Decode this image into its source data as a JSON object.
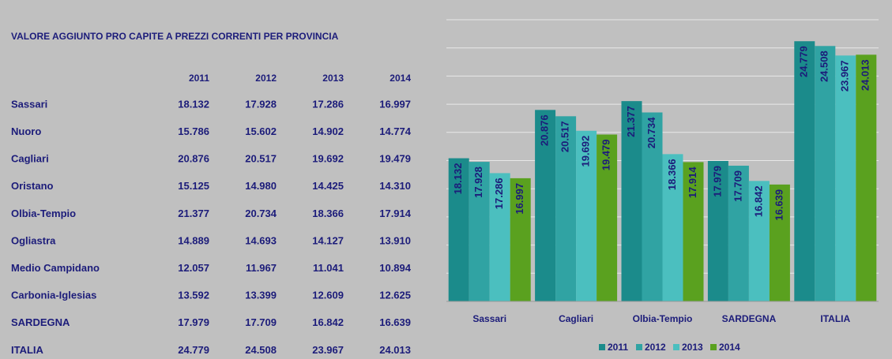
{
  "table": {
    "title": "VALORE AGGIUNTO PRO CAPITE A PREZZI CORRENTI PER PROVINCIA",
    "columns": [
      "2011",
      "2012",
      "2013",
      "2014"
    ],
    "rows": [
      {
        "name": "Sassari",
        "values": [
          "18.132",
          "17.928",
          "17.286",
          "16.997"
        ]
      },
      {
        "name": "Nuoro",
        "values": [
          "15.786",
          "15.602",
          "14.902",
          "14.774"
        ]
      },
      {
        "name": "Cagliari",
        "values": [
          "20.876",
          "20.517",
          "19.692",
          "19.479"
        ]
      },
      {
        "name": "Oristano",
        "values": [
          "15.125",
          "14.980",
          "14.425",
          "14.310"
        ]
      },
      {
        "name": "Olbia-Tempio",
        "values": [
          "21.377",
          "20.734",
          "18.366",
          "17.914"
        ]
      },
      {
        "name": "Ogliastra",
        "values": [
          "14.889",
          "14.693",
          "14.127",
          "13.910"
        ]
      },
      {
        "name": "Medio Campidano",
        "values": [
          "12.057",
          "11.967",
          "11.041",
          "10.894"
        ]
      },
      {
        "name": "Carbonia-Iglesias",
        "values": [
          "13.592",
          "13.399",
          "12.609",
          "12.625"
        ]
      },
      {
        "name": "SARDEGNA",
        "values": [
          "17.979",
          "17.709",
          "16.842",
          "16.639"
        ]
      },
      {
        "name": "ITALIA",
        "values": [
          "24.779",
          "24.508",
          "23.967",
          "24.013"
        ]
      }
    ]
  },
  "chart_data": {
    "type": "bar",
    "categories": [
      "Sassari",
      "Cagliari",
      "Olbia-Tempio",
      "SARDEGNA",
      "ITALIA"
    ],
    "series": [
      {
        "name": "2011",
        "color": "#1b8b8b",
        "values": [
          18132,
          20876,
          21377,
          17979,
          24779
        ],
        "value_labels": [
          "18.132",
          "20.876",
          "21.377",
          "17.979",
          "24.779"
        ]
      },
      {
        "name": "2012",
        "color": "#30a3a3",
        "values": [
          17928,
          20517,
          20734,
          17709,
          24508
        ],
        "value_labels": [
          "17.928",
          "20.517",
          "20.734",
          "17.709",
          "24.508"
        ]
      },
      {
        "name": "2013",
        "color": "#4bbfbf",
        "values": [
          17286,
          19692,
          18366,
          16842,
          23967
        ],
        "value_labels": [
          "17.286",
          "19.692",
          "18.366",
          "16.842",
          "23.967"
        ]
      },
      {
        "name": "2014",
        "color": "#5aa11f",
        "values": [
          16997,
          19479,
          17914,
          16639,
          24013
        ],
        "value_labels": [
          "16.997",
          "19.479",
          "17.914",
          "16.639",
          "24.013"
        ]
      }
    ],
    "ylim": [
      10000,
      26000
    ],
    "yticks": [
      10000,
      11600,
      13200,
      14800,
      16400,
      18000,
      19600,
      21200,
      22800,
      24400,
      26000
    ],
    "grid": true,
    "legend": "bottom"
  }
}
